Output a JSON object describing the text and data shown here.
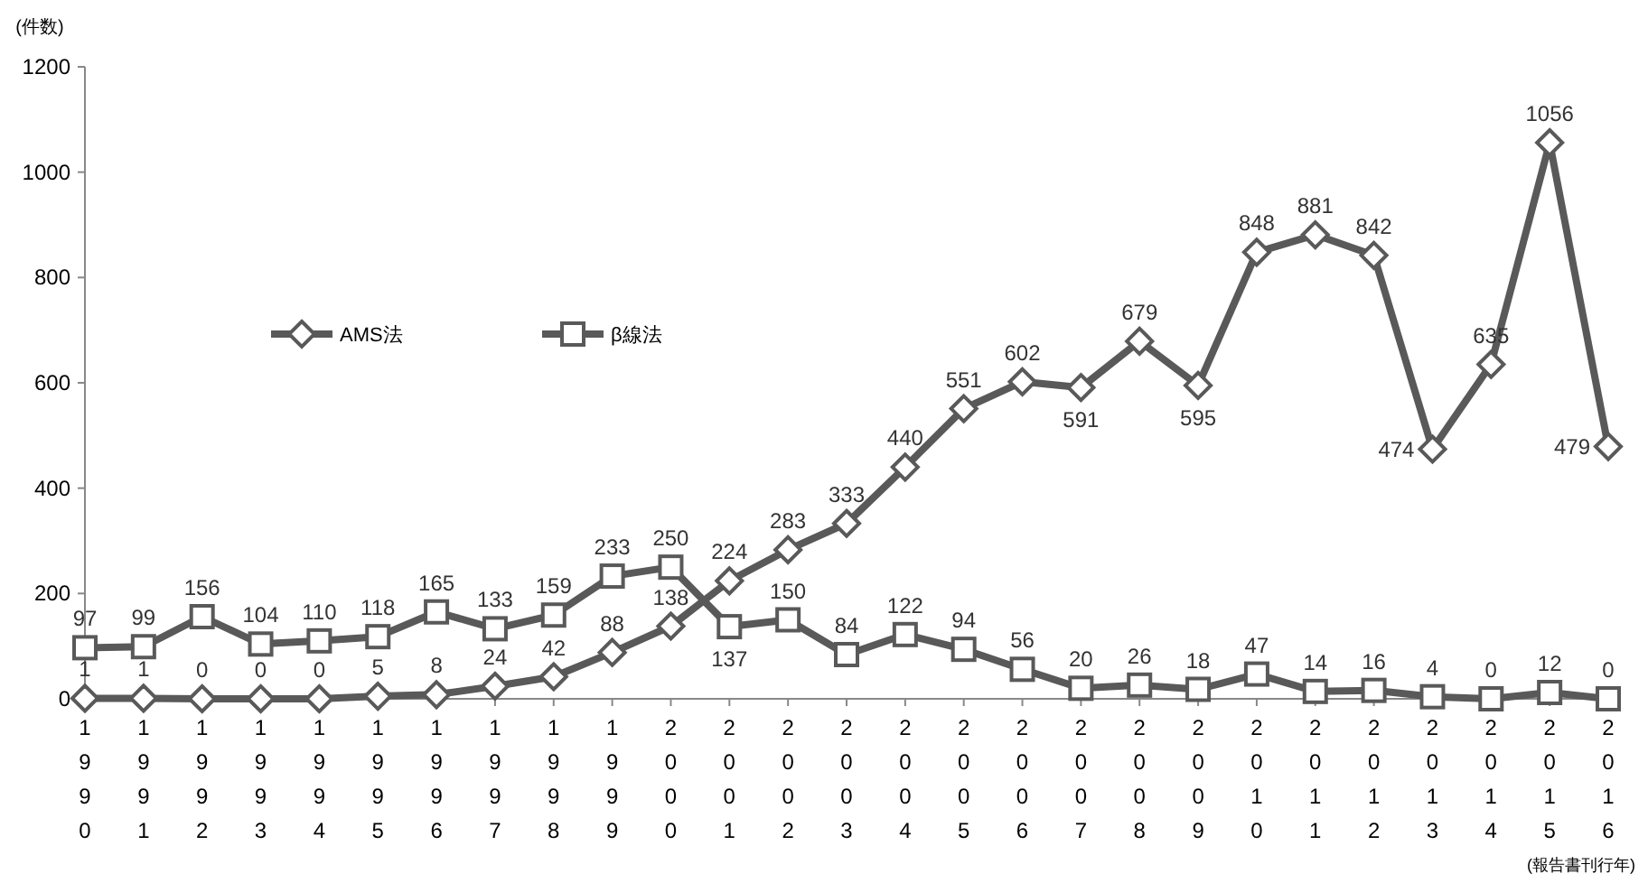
{
  "chart_data": {
    "type": "line",
    "ylabel": "(件数)",
    "annotations": [
      "(報告書刊行年)"
    ],
    "categories": [
      "1990",
      "1991",
      "1992",
      "1993",
      "1994",
      "1995",
      "1996",
      "1997",
      "1998",
      "1999",
      "2000",
      "2001",
      "2002",
      "2003",
      "2004",
      "2005",
      "2006",
      "2007",
      "2008",
      "2009",
      "2010",
      "2011",
      "2012",
      "2013",
      "2014",
      "2015",
      "2016"
    ],
    "series": [
      {
        "name": "AMS法",
        "color": "#595959",
        "marker": "diamond",
        "values": [
          1,
          1,
          0,
          0,
          0,
          5,
          8,
          24,
          42,
          88,
          138,
          224,
          283,
          333,
          440,
          551,
          602,
          591,
          679,
          595,
          848,
          881,
          842,
          474,
          635,
          1056,
          479
        ]
      },
      {
        "name": "β線法",
        "color": "#595959",
        "marker": "square",
        "values": [
          97,
          99,
          156,
          104,
          110,
          118,
          165,
          133,
          159,
          233,
          250,
          137,
          150,
          84,
          122,
          94,
          56,
          20,
          26,
          18,
          47,
          14,
          16,
          4,
          0,
          12,
          0
        ]
      }
    ],
    "ylim": [
      0,
      1200
    ],
    "yticks": [
      0,
      200,
      400,
      600,
      800,
      1000,
      1200
    ],
    "data_labels": true,
    "legend": "left",
    "grid": false,
    "line_style": "solid"
  }
}
